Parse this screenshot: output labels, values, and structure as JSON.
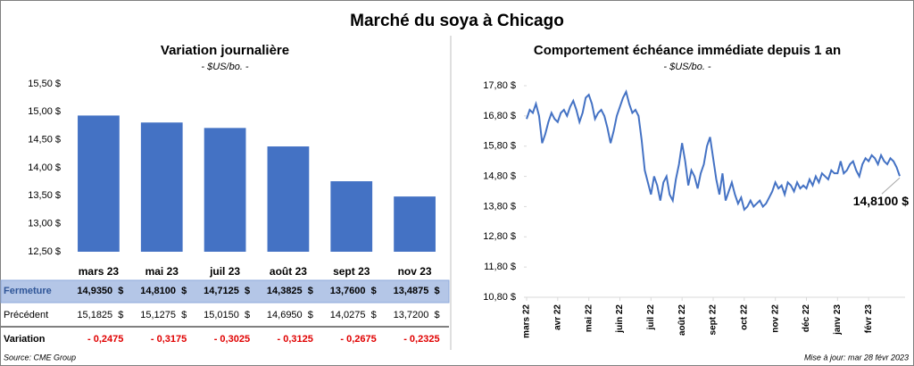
{
  "title": "Marché du soya à Chicago",
  "source": "Source: CME Group",
  "updated": "Mise à jour: mar 28 févr 2023",
  "chart_data": [
    {
      "type": "bar",
      "title": "Variation journalière",
      "subtitle": "- $US/bo. -",
      "categories": [
        "mars 23",
        "mai 23",
        "juil 23",
        "août 23",
        "sept 23",
        "nov 23"
      ],
      "values": [
        14.935,
        14.81,
        14.7125,
        14.3825,
        13.76,
        13.4875
      ],
      "color": "#4472c4",
      "ylim": [
        12.5,
        15.5
      ],
      "yticks": [
        {
          "value": 12.5,
          "label": "12,50 $"
        },
        {
          "value": 13,
          "label": "13,00 $"
        },
        {
          "value": 13.5,
          "label": "13,50 $"
        },
        {
          "value": 14,
          "label": "14,00 $"
        },
        {
          "value": 14.5,
          "label": "14,50 $"
        },
        {
          "value": 15,
          "label": "15,00 $"
        },
        {
          "value": 15.5,
          "label": "15,50 $"
        }
      ]
    },
    {
      "type": "line",
      "title": "Comportement  échéance immédiate depuis 1 an",
      "subtitle": "- $US/bo. -",
      "color": "#4472c4",
      "values": [
        16.7,
        17.0,
        16.9,
        17.2,
        16.8,
        15.9,
        16.2,
        16.6,
        16.9,
        16.7,
        16.6,
        16.9,
        17.0,
        16.8,
        17.1,
        17.3,
        17.0,
        16.6,
        16.9,
        17.4,
        17.5,
        17.2,
        16.7,
        16.9,
        17.0,
        16.8,
        16.4,
        15.9,
        16.3,
        16.8,
        17.1,
        17.4,
        17.6,
        17.2,
        16.9,
        17.0,
        16.8,
        16.0,
        15.0,
        14.6,
        14.2,
        14.8,
        14.5,
        14.0,
        14.6,
        14.8,
        14.2,
        14.0,
        14.7,
        15.2,
        15.9,
        15.3,
        14.5,
        15.0,
        14.8,
        14.4,
        14.9,
        15.2,
        15.8,
        16.1,
        15.4,
        14.7,
        14.2,
        14.9,
        14.0,
        14.3,
        14.6,
        14.2,
        13.9,
        14.1,
        13.7,
        13.8,
        14.0,
        13.8,
        13.9,
        14.0,
        13.8,
        13.9,
        14.1,
        14.3,
        14.6,
        14.4,
        14.5,
        14.2,
        14.6,
        14.5,
        14.3,
        14.6,
        14.4,
        14.5,
        14.4,
        14.7,
        14.5,
        14.8,
        14.6,
        14.9,
        14.8,
        14.7,
        15.0,
        14.9,
        14.9,
        15.3,
        14.9,
        15.0,
        15.2,
        15.3,
        15.0,
        14.8,
        15.2,
        15.4,
        15.3,
        15.5,
        15.4,
        15.2,
        15.5,
        15.3,
        15.2,
        15.4,
        15.3,
        15.1,
        14.81
      ],
      "xlim": [
        0,
        120
      ],
      "xticks": [
        {
          "value": 0,
          "label": "mars 22"
        },
        {
          "value": 10,
          "label": "avr 22"
        },
        {
          "value": 20,
          "label": "mai 22"
        },
        {
          "value": 30,
          "label": "juin 22"
        },
        {
          "value": 40,
          "label": "juil 22"
        },
        {
          "value": 50,
          "label": "août 22"
        },
        {
          "value": 60,
          "label": "sept 22"
        },
        {
          "value": 70,
          "label": "oct 22"
        },
        {
          "value": 80,
          "label": "nov 22"
        },
        {
          "value": 90,
          "label": "déc 22"
        },
        {
          "value": 100,
          "label": "janv 23"
        },
        {
          "value": 110,
          "label": "févr 23"
        }
      ],
      "ylim": [
        10.8,
        17.8
      ],
      "yticks": [
        {
          "value": 10.8,
          "label": "10,80 $"
        },
        {
          "value": 11.8,
          "label": "11,80 $"
        },
        {
          "value": 12.8,
          "label": "12,80 $"
        },
        {
          "value": 13.8,
          "label": "13,80 $"
        },
        {
          "value": 14.8,
          "label": "14,80 $"
        },
        {
          "value": 15.8,
          "label": "15,80 $"
        },
        {
          "value": 16.8,
          "label": "16,80 $"
        },
        {
          "value": 17.8,
          "label": "17,80 $"
        }
      ],
      "annotation": "14,8100 $"
    }
  ],
  "table": {
    "rows": [
      [
        "Fermeture",
        "14,9350  $",
        "14,8100  $",
        "14,7125  $",
        "14,3825  $",
        "13,7600  $",
        "13,4875  $"
      ],
      [
        "Précédent",
        "15,1825  $",
        "15,1275  $",
        "15,0150  $",
        "14,6950  $",
        "14,0275  $",
        "13,7200  $"
      ],
      [
        "Variation",
        "- 0,2475",
        "- 0,3175",
        "- 0,3025",
        "- 0,3125",
        "- 0,2675",
        "- 0,2325"
      ]
    ]
  }
}
